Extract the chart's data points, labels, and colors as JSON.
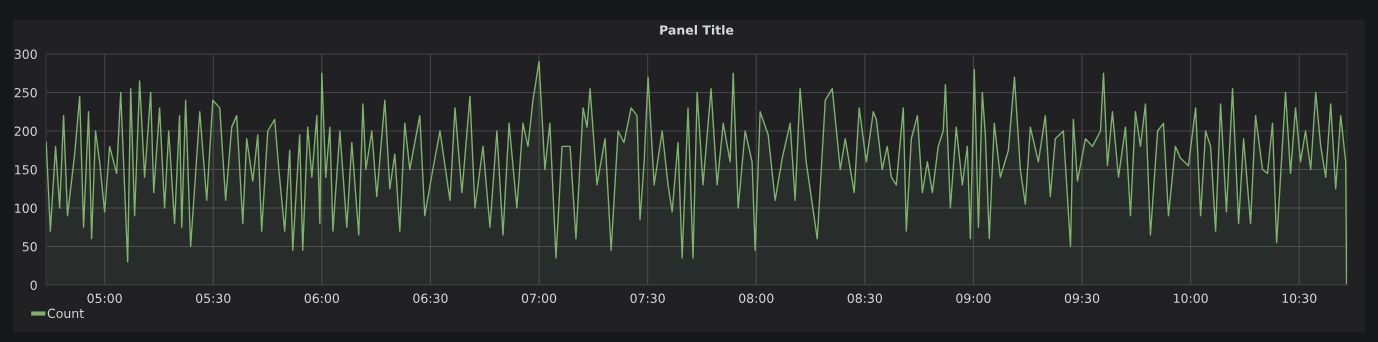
{
  "chart_data": {
    "type": "area",
    "title": "Panel Title",
    "x": [
      4.731,
      4.75,
      4.774,
      4.793,
      4.811,
      4.829,
      4.862,
      4.885,
      4.903,
      4.926,
      4.94,
      4.958,
      4.977,
      5.0,
      5.023,
      5.055,
      5.074,
      5.106,
      5.12,
      5.138,
      5.161,
      5.184,
      5.212,
      5.226,
      5.253,
      5.276,
      5.295,
      5.322,
      5.345,
      5.355,
      5.373,
      5.396,
      5.438,
      5.47,
      5.498,
      5.53,
      5.557,
      5.585,
      5.608,
      5.636,
      5.654,
      5.682,
      5.705,
      5.723,
      5.751,
      5.783,
      5.802,
      5.829,
      5.852,
      5.866,
      5.898,
      5.912,
      5.935,
      5.954,
      5.977,
      5.991,
      6.0,
      6.018,
      6.037,
      6.051,
      6.083,
      6.115,
      6.138,
      6.17,
      6.189,
      6.203,
      6.23,
      6.253,
      6.29,
      6.313,
      6.336,
      6.359,
      6.382,
      6.405,
      6.451,
      6.474,
      6.511,
      6.544,
      6.59,
      6.613,
      6.645,
      6.682,
      6.705,
      6.742,
      6.774,
      6.806,
      6.834,
      6.862,
      6.898,
      6.926,
      6.949,
      6.972,
      7.0,
      7.027,
      7.05,
      7.078,
      7.106,
      7.143,
      7.17,
      7.203,
      7.221,
      7.235,
      7.267,
      7.304,
      7.332,
      7.364,
      7.391,
      7.424,
      7.451,
      7.465,
      7.484,
      7.502,
      7.53,
      7.567,
      7.594,
      7.613,
      7.64,
      7.659,
      7.686,
      7.709,
      7.728,
      7.755,
      7.792,
      7.82,
      7.848,
      7.88,
      7.894,
      7.917,
      7.949,
      7.981,
      7.995,
      8.018,
      8.055,
      8.087,
      8.12,
      8.156,
      8.179,
      8.202,
      8.23,
      8.281,
      8.318,
      8.35,
      8.387,
      8.41,
      8.451,
      8.474,
      8.507,
      8.539,
      8.553,
      8.58,
      8.603,
      8.622,
      8.645,
      8.677,
      8.691,
      8.714,
      8.742,
      8.765,
      8.788,
      8.811,
      8.838,
      8.861,
      8.871,
      8.894,
      8.921,
      8.949,
      8.972,
      8.986,
      9.004,
      9.023,
      9.041,
      9.055,
      9.073,
      9.096,
      9.124,
      9.161,
      9.189,
      9.216,
      9.239,
      9.262,
      9.299,
      9.331,
      9.354,
      9.377,
      9.414,
      9.447,
      9.46,
      9.479,
      9.516,
      9.548,
      9.585,
      9.599,
      9.617,
      9.64,
      9.668,
      9.7,
      9.723,
      9.746,
      9.769,
      9.792,
      9.815,
      9.848,
      9.875,
      9.898,
      9.93,
      9.953,
      9.99,
      10.023,
      10.046,
      10.069,
      10.092,
      10.115,
      10.138,
      10.165,
      10.193,
      10.221,
      10.244,
      10.276,
      10.299,
      10.331,
      10.354,
      10.377,
      10.396,
      10.437,
      10.46,
      10.483,
      10.506,
      10.529,
      10.553,
      10.576,
      10.599,
      10.622,
      10.645,
      10.668,
      10.691,
      10.714,
      10.718
    ],
    "series": [
      {
        "name": "Count",
        "color": "#7eb26d",
        "values": [
          185,
          70,
          180,
          100,
          220,
          90,
          170,
          245,
          75,
          225,
          60,
          200,
          160,
          95,
          180,
          145,
          250,
          30,
          255,
          90,
          265,
          140,
          250,
          120,
          230,
          100,
          200,
          80,
          220,
          75,
          240,
          50,
          225,
          110,
          240,
          230,
          110,
          205,
          220,
          80,
          190,
          135,
          195,
          70,
          200,
          215,
          150,
          70,
          175,
          45,
          195,
          45,
          205,
          140,
          220,
          80,
          275,
          140,
          205,
          70,
          200,
          75,
          185,
          65,
          235,
          150,
          200,
          115,
          240,
          125,
          170,
          70,
          210,
          150,
          220,
          90,
          150,
          200,
          110,
          230,
          120,
          245,
          100,
          180,
          75,
          200,
          65,
          210,
          100,
          210,
          180,
          240,
          290,
          150,
          210,
          35,
          180,
          180,
          60,
          230,
          205,
          255,
          130,
          190,
          45,
          200,
          185,
          230,
          220,
          85,
          160,
          270,
          130,
          200,
          130,
          95,
          185,
          35,
          230,
          35,
          250,
          130,
          255,
          130,
          210,
          160,
          275,
          100,
          200,
          160,
          45,
          225,
          195,
          110,
          165,
          210,
          110,
          255,
          160,
          60,
          240,
          255,
          150,
          190,
          120,
          230,
          160,
          225,
          215,
          150,
          180,
          140,
          130,
          230,
          70,
          190,
          220,
          120,
          160,
          120,
          180,
          200,
          260,
          100,
          205,
          130,
          180,
          60,
          280,
          75,
          250,
          195,
          60,
          210,
          140,
          175,
          270,
          150,
          105,
          205,
          160,
          220,
          115,
          190,
          200,
          50,
          215,
          135,
          190,
          180,
          200,
          275,
          155,
          225,
          140,
          205,
          90,
          225,
          180,
          235,
          65,
          200,
          210,
          90,
          180,
          165,
          155,
          230,
          90,
          200,
          180,
          70,
          235,
          95,
          255,
          80,
          190,
          80,
          220,
          150,
          145,
          210,
          55,
          250,
          145,
          230,
          160,
          200,
          150,
          250,
          180,
          140,
          235,
          125,
          220,
          160,
          2
        ]
      }
    ],
    "xlim": [
      4.73,
      10.72
    ],
    "xticks": [
      {
        "value": 5,
        "label": "05:00"
      },
      {
        "value": 5.5,
        "label": "05:30"
      },
      {
        "value": 6,
        "label": "06:00"
      },
      {
        "value": 6.5,
        "label": "06:30"
      },
      {
        "value": 7,
        "label": "07:00"
      },
      {
        "value": 7.5,
        "label": "07:30"
      },
      {
        "value": 8,
        "label": "08:00"
      },
      {
        "value": 8.5,
        "label": "08:30"
      },
      {
        "value": 9,
        "label": "09:00"
      },
      {
        "value": 9.5,
        "label": "09:30"
      },
      {
        "value": 10,
        "label": "10:00"
      },
      {
        "value": 10.5,
        "label": "10:30"
      }
    ],
    "ylim": [
      0,
      300
    ],
    "yticks": [
      0,
      50,
      100,
      150,
      200,
      250,
      300
    ],
    "grid": true,
    "legend": "bottom left",
    "marker": "none",
    "line_style": "solid"
  }
}
